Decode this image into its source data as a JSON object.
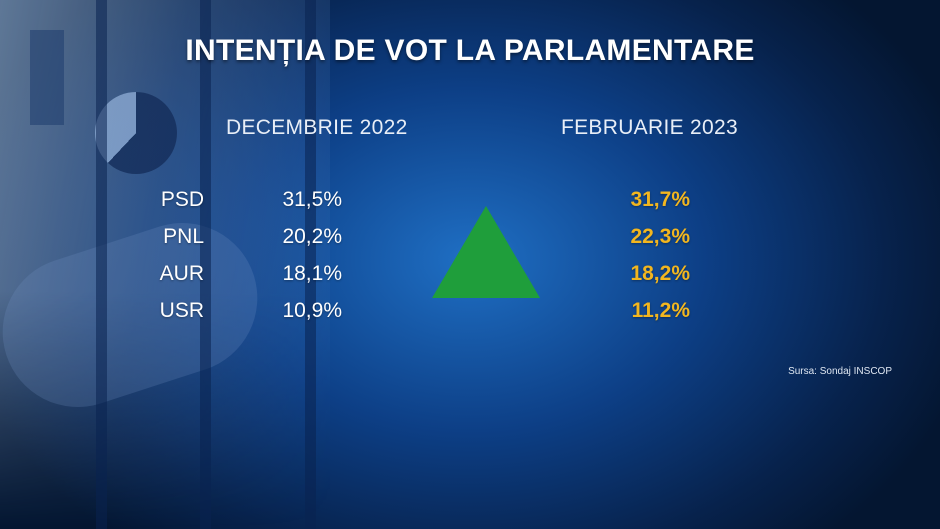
{
  "title": "INTENȚIA DE VOT LA PARLAMENTARE",
  "chart_data": {
    "type": "table",
    "title": "INTENȚIA DE VOT LA PARLAMENTARE",
    "columns": [
      "DECEMBRIE 2022",
      "FEBRUARIE 2023"
    ],
    "rows": [
      {
        "party": "PSD",
        "values": [
          "31,5%",
          "31,7%"
        ]
      },
      {
        "party": "PNL",
        "values": [
          "20,2%",
          "22,3%"
        ]
      },
      {
        "party": "AUR",
        "values": [
          "18,1%",
          "18,2%"
        ]
      },
      {
        "party": "USR",
        "values": [
          "10,9%",
          "11,2%"
        ]
      }
    ],
    "trend_icon": "up-triangle-icon",
    "colors": {
      "latest_values": "#f2b61f",
      "trend": "#1f9e3b",
      "background": "#0d3f86"
    }
  },
  "source": "Sursa: Sondaj INSCOP"
}
